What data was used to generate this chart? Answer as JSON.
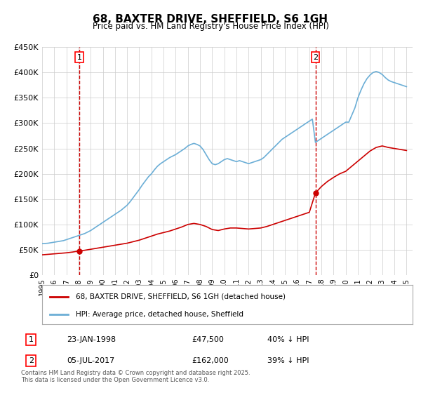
{
  "title": "68, BAXTER DRIVE, SHEFFIELD, S6 1GH",
  "subtitle": "Price paid vs. HM Land Registry's House Price Index (HPI)",
  "hpi_label": "HPI: Average price, detached house, Sheffield",
  "property_label": "68, BAXTER DRIVE, SHEFFIELD, S6 1GH (detached house)",
  "xlabel": "",
  "ylabel": "",
  "ylim": [
    0,
    450000
  ],
  "xlim_start": 1995.0,
  "xlim_end": 2025.5,
  "yticks": [
    0,
    50000,
    100000,
    150000,
    200000,
    250000,
    300000,
    350000,
    400000,
    450000
  ],
  "ytick_labels": [
    "£0",
    "£50K",
    "£100K",
    "£150K",
    "£200K",
    "£250K",
    "£300K",
    "£350K",
    "£400K",
    "£450K"
  ],
  "transaction1_date": 1998.07,
  "transaction1_price": 47500,
  "transaction1_label": "1",
  "transaction1_info": "23-JAN-1998",
  "transaction1_price_str": "£47,500",
  "transaction1_hpi": "40% ↓ HPI",
  "transaction2_date": 2017.51,
  "transaction2_price": 162000,
  "transaction2_label": "2",
  "transaction2_info": "05-JUL-2017",
  "transaction2_price_str": "£162,000",
  "transaction2_hpi": "39% ↓ HPI",
  "hpi_color": "#6baed6",
  "property_color": "#cc0000",
  "vline_color": "#cc0000",
  "grid_color": "#cccccc",
  "background_color": "#ffffff",
  "footnote": "Contains HM Land Registry data © Crown copyright and database right 2025.\nThis data is licensed under the Open Government Licence v3.0.",
  "hpi_data_x": [
    1995.0,
    1995.25,
    1995.5,
    1995.75,
    1996.0,
    1996.25,
    1996.5,
    1996.75,
    1997.0,
    1997.25,
    1997.5,
    1997.75,
    1998.0,
    1998.25,
    1998.5,
    1998.75,
    1999.0,
    1999.25,
    1999.5,
    1999.75,
    2000.0,
    2000.25,
    2000.5,
    2000.75,
    2001.0,
    2001.25,
    2001.5,
    2001.75,
    2002.0,
    2002.25,
    2002.5,
    2002.75,
    2003.0,
    2003.25,
    2003.5,
    2003.75,
    2004.0,
    2004.25,
    2004.5,
    2004.75,
    2005.0,
    2005.25,
    2005.5,
    2005.75,
    2006.0,
    2006.25,
    2006.5,
    2006.75,
    2007.0,
    2007.25,
    2007.5,
    2007.75,
    2008.0,
    2008.25,
    2008.5,
    2008.75,
    2009.0,
    2009.25,
    2009.5,
    2009.75,
    2010.0,
    2010.25,
    2010.5,
    2010.75,
    2011.0,
    2011.25,
    2011.5,
    2011.75,
    2012.0,
    2012.25,
    2012.5,
    2012.75,
    2013.0,
    2013.25,
    2013.5,
    2013.75,
    2014.0,
    2014.25,
    2014.5,
    2014.75,
    2015.0,
    2015.25,
    2015.5,
    2015.75,
    2016.0,
    2016.25,
    2016.5,
    2016.75,
    2017.0,
    2017.25,
    2017.5,
    2017.75,
    2018.0,
    2018.25,
    2018.5,
    2018.75,
    2019.0,
    2019.25,
    2019.5,
    2019.75,
    2020.0,
    2020.25,
    2020.5,
    2020.75,
    2021.0,
    2021.25,
    2021.5,
    2021.75,
    2022.0,
    2022.25,
    2022.5,
    2022.75,
    2023.0,
    2023.25,
    2023.5,
    2023.75,
    2024.0,
    2024.25,
    2024.5,
    2024.75,
    2025.0
  ],
  "hpi_data_y": [
    62000,
    62500,
    63000,
    64000,
    65000,
    66000,
    67000,
    68000,
    70000,
    72000,
    74000,
    76000,
    78000,
    80000,
    82000,
    85000,
    88000,
    92000,
    96000,
    100000,
    104000,
    108000,
    112000,
    116000,
    120000,
    124000,
    128000,
    133000,
    138000,
    145000,
    153000,
    161000,
    169000,
    178000,
    186000,
    194000,
    200000,
    208000,
    215000,
    220000,
    224000,
    228000,
    232000,
    235000,
    238000,
    242000,
    246000,
    250000,
    255000,
    258000,
    260000,
    258000,
    255000,
    248000,
    238000,
    228000,
    220000,
    218000,
    220000,
    224000,
    228000,
    230000,
    228000,
    226000,
    224000,
    226000,
    224000,
    222000,
    220000,
    222000,
    224000,
    226000,
    228000,
    232000,
    238000,
    244000,
    250000,
    256000,
    262000,
    268000,
    272000,
    276000,
    280000,
    284000,
    288000,
    292000,
    296000,
    300000,
    304000,
    308000,
    262000,
    266000,
    270000,
    274000,
    278000,
    282000,
    286000,
    290000,
    294000,
    298000,
    302000,
    302000,
    316000,
    330000,
    350000,
    365000,
    378000,
    388000,
    395000,
    400000,
    402000,
    400000,
    396000,
    390000,
    385000,
    382000,
    380000,
    378000,
    376000,
    374000,
    372000
  ],
  "prop_data_x": [
    1995.0,
    1995.5,
    1996.0,
    1996.5,
    1997.0,
    1997.5,
    1998.0,
    1998.5,
    1999.0,
    1999.5,
    2000.0,
    2000.5,
    2001.0,
    2001.5,
    2002.0,
    2002.5,
    2003.0,
    2003.5,
    2004.0,
    2004.5,
    2005.0,
    2005.5,
    2006.0,
    2006.5,
    2007.0,
    2007.5,
    2008.0,
    2008.5,
    2009.0,
    2009.5,
    2010.0,
    2010.5,
    2011.0,
    2011.5,
    2012.0,
    2012.5,
    2013.0,
    2013.5,
    2014.0,
    2014.5,
    2015.0,
    2015.5,
    2016.0,
    2016.5,
    2017.0,
    2017.5,
    2018.0,
    2018.5,
    2019.0,
    2019.5,
    2020.0,
    2020.5,
    2021.0,
    2021.5,
    2022.0,
    2022.5,
    2023.0,
    2023.5,
    2024.0,
    2024.5,
    2025.0
  ],
  "prop_data_y": [
    40000,
    41000,
    42000,
    43000,
    44000,
    45500,
    47500,
    49000,
    51000,
    53000,
    55000,
    57000,
    59000,
    61000,
    63000,
    66000,
    69000,
    73000,
    77000,
    81000,
    84000,
    87000,
    91000,
    95000,
    100000,
    102000,
    100000,
    96000,
    90000,
    88000,
    91000,
    93000,
    93000,
    92000,
    91000,
    92000,
    93000,
    96000,
    100000,
    104000,
    108000,
    112000,
    116000,
    120000,
    124000,
    162000,
    175000,
    185000,
    193000,
    200000,
    205000,
    215000,
    225000,
    235000,
    245000,
    252000,
    255000,
    252000,
    250000,
    248000,
    246000
  ]
}
